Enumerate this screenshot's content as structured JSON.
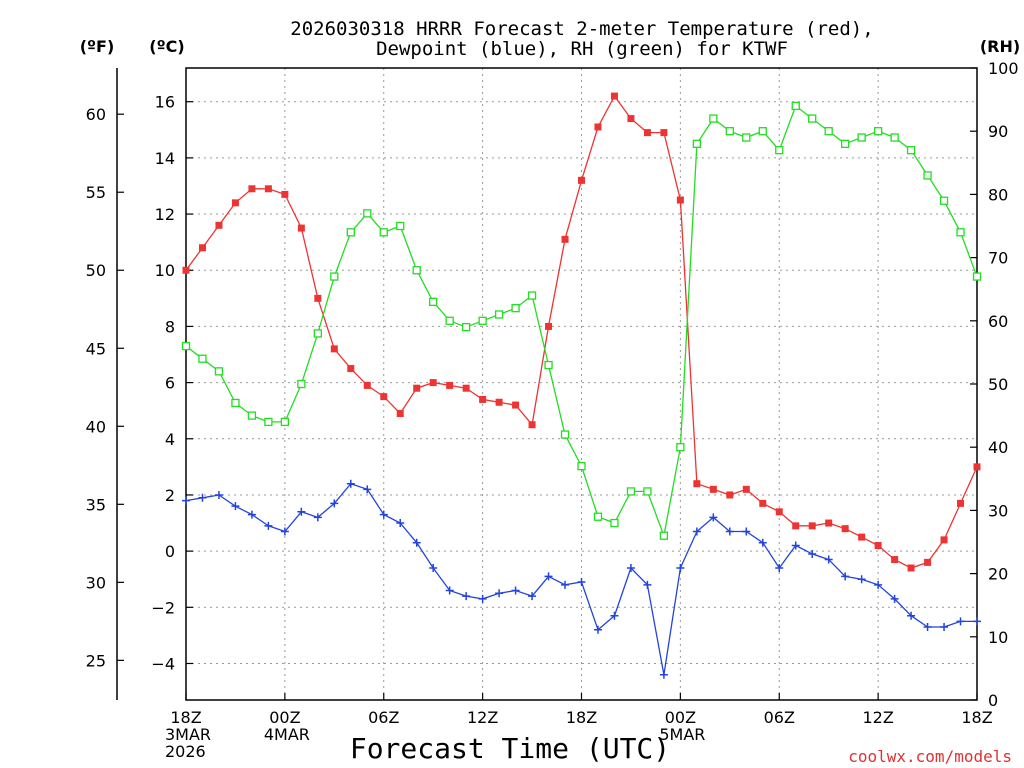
{
  "title_line1": "2026030318 HRRR Forecast 2-meter Temperature (red),",
  "title_line2": "Dewpoint (blue), RH (green) for KTWF",
  "unit_f": "(ºF)",
  "unit_c": "(ºC)",
  "unit_rh": "(RH)",
  "xlabel": "Forecast Time (UTC)",
  "watermark": "coolwx.com/models",
  "colors": {
    "temp": "#ee3333",
    "dew": "#2244dd",
    "rh": "#22dd22",
    "grid": "#999999"
  },
  "chart_data": {
    "type": "line",
    "x_hours": [
      0,
      1,
      2,
      3,
      4,
      5,
      6,
      7,
      8,
      9,
      10,
      11,
      12,
      13,
      14,
      15,
      16,
      17,
      18,
      19,
      20,
      21,
      22,
      23,
      24,
      25,
      26,
      27,
      28,
      29,
      30,
      31,
      32,
      33,
      34,
      35,
      36,
      37,
      38,
      39,
      40,
      41,
      42,
      43,
      44,
      45,
      46,
      47,
      48
    ],
    "x_ticks": [
      {
        "hour": 0,
        "lines": [
          "18Z",
          "3MAR",
          "2026"
        ]
      },
      {
        "hour": 6,
        "lines": [
          "00Z",
          "4MAR"
        ]
      },
      {
        "hour": 12,
        "lines": [
          "06Z"
        ]
      },
      {
        "hour": 18,
        "lines": [
          "12Z"
        ]
      },
      {
        "hour": 24,
        "lines": [
          "18Z"
        ]
      },
      {
        "hour": 30,
        "lines": [
          "00Z",
          "5MAR"
        ]
      },
      {
        "hour": 36,
        "lines": [
          "06Z"
        ]
      },
      {
        "hour": 42,
        "lines": [
          "12Z"
        ]
      },
      {
        "hour": 48,
        "lines": [
          "18Z"
        ]
      }
    ],
    "xlim": [
      0,
      48
    ],
    "ylim_c": [
      -5.3,
      17.2
    ],
    "yticks_c": [
      -4,
      -2,
      0,
      2,
      4,
      6,
      8,
      10,
      12,
      14,
      16
    ],
    "yticks_f": [
      25,
      30,
      35,
      40,
      45,
      50,
      55,
      60
    ],
    "ylim_rh": [
      0,
      100
    ],
    "yticks_rh": [
      0,
      10,
      20,
      30,
      40,
      50,
      60,
      70,
      80,
      90,
      100
    ],
    "grid": true,
    "series": [
      {
        "key": "temp",
        "unit": "C",
        "marker": "filled-square",
        "values": [
          10.0,
          10.8,
          11.6,
          12.4,
          12.9,
          12.9,
          12.7,
          11.5,
          9.0,
          7.2,
          6.5,
          5.9,
          5.5,
          4.9,
          5.8,
          6.0,
          5.9,
          5.8,
          5.4,
          5.3,
          5.2,
          4.5,
          8.0,
          11.1,
          13.2,
          15.1,
          16.2,
          15.4,
          14.9,
          14.9,
          12.5,
          2.4,
          2.2,
          2.0,
          2.2,
          1.7,
          1.4,
          0.9,
          0.9,
          1.0,
          0.8,
          0.5,
          0.2,
          -0.3,
          -0.6,
          -0.4,
          0.4,
          1.7,
          3.0
        ]
      },
      {
        "key": "dew",
        "unit": "C",
        "marker": "plus",
        "values": [
          1.8,
          1.9,
          2.0,
          1.6,
          1.3,
          0.9,
          0.7,
          1.4,
          1.2,
          1.7,
          2.4,
          2.2,
          1.3,
          1.0,
          0.3,
          -0.6,
          -1.4,
          -1.6,
          -1.7,
          -1.5,
          -1.4,
          -1.6,
          -0.9,
          -1.2,
          -1.1,
          -2.8,
          -2.3,
          -0.6,
          -1.2,
          -4.4,
          -0.6,
          0.7,
          1.2,
          0.7,
          0.7,
          0.3,
          -0.6,
          0.2,
          -0.1,
          -0.3,
          -0.9,
          -1.0,
          -1.2,
          -1.7,
          -2.3,
          -2.7,
          -2.7,
          -2.5,
          -2.5
        ]
      },
      {
        "key": "rh",
        "unit": "%",
        "marker": "open-square",
        "values": [
          56,
          54,
          52,
          47,
          45,
          44,
          44,
          50,
          58,
          67,
          74,
          77,
          74,
          75,
          68,
          63,
          60,
          59,
          60,
          61,
          62,
          64,
          53,
          42,
          37,
          29,
          28,
          33,
          33,
          26,
          40,
          88,
          92,
          90,
          89,
          90,
          87,
          94,
          92,
          90,
          88,
          89,
          90,
          89,
          87,
          83,
          79,
          74,
          67
        ]
      }
    ]
  }
}
